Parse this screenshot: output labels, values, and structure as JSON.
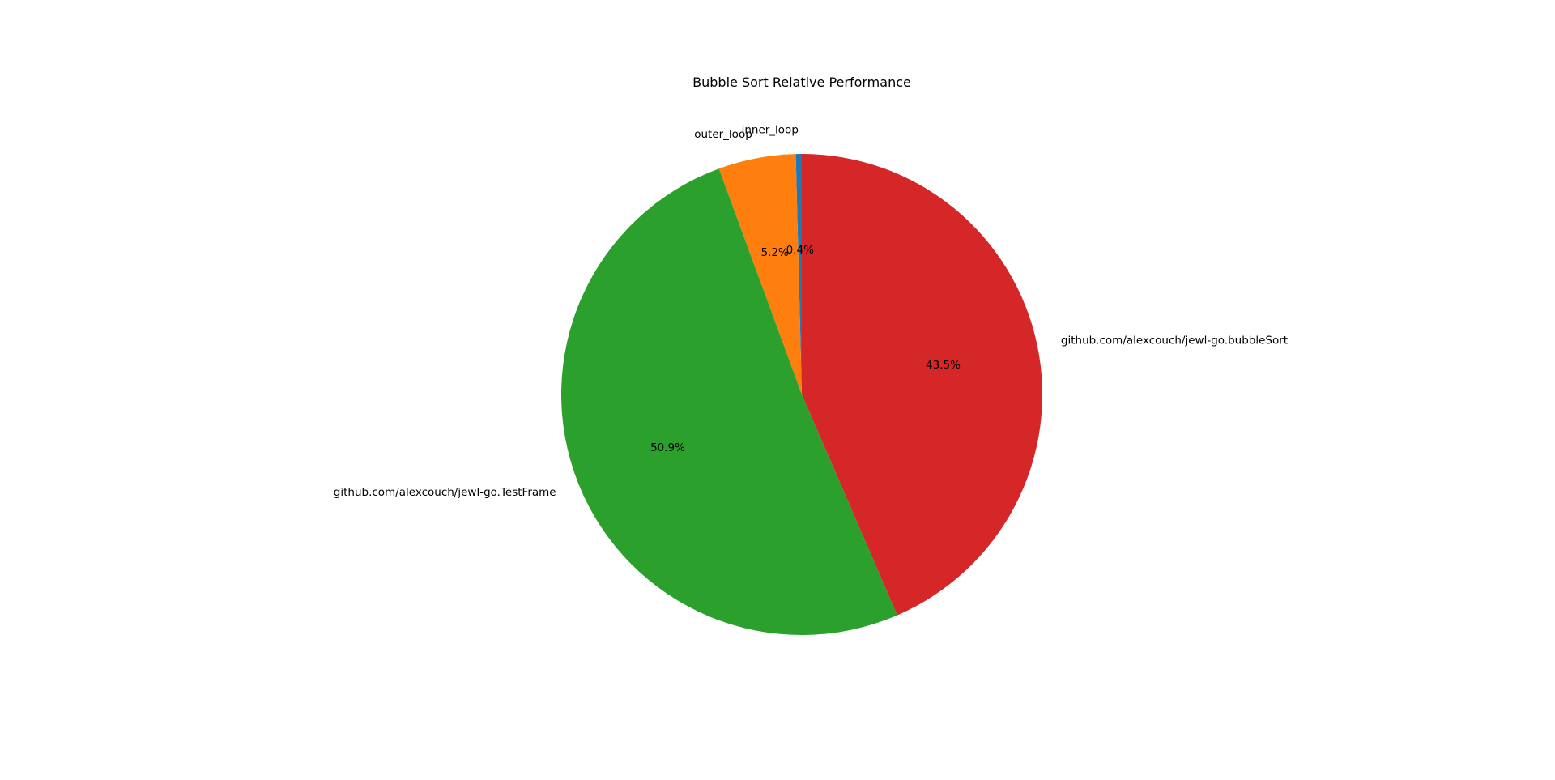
{
  "chart_data": {
    "type": "pie",
    "title": "Bubble Sort Relative Performance",
    "start_angle_deg": 90,
    "direction": "counterclockwise",
    "slices": [
      {
        "label": "inner_loop",
        "value": 0.4,
        "pct_label": "0.4%",
        "color": "#1f77b4"
      },
      {
        "label": "outer_loop",
        "value": 5.2,
        "pct_label": "5.2%",
        "color": "#ff7f0e"
      },
      {
        "label": "github.com/alexcouch/jewl-go.TestFrame",
        "value": 50.9,
        "pct_label": "50.9%",
        "color": "#2ca02c"
      },
      {
        "label": "github.com/alexcouch/jewl-go.bubbleSort",
        "value": 43.5,
        "pct_label": "43.5%",
        "color": "#d62728"
      }
    ]
  }
}
